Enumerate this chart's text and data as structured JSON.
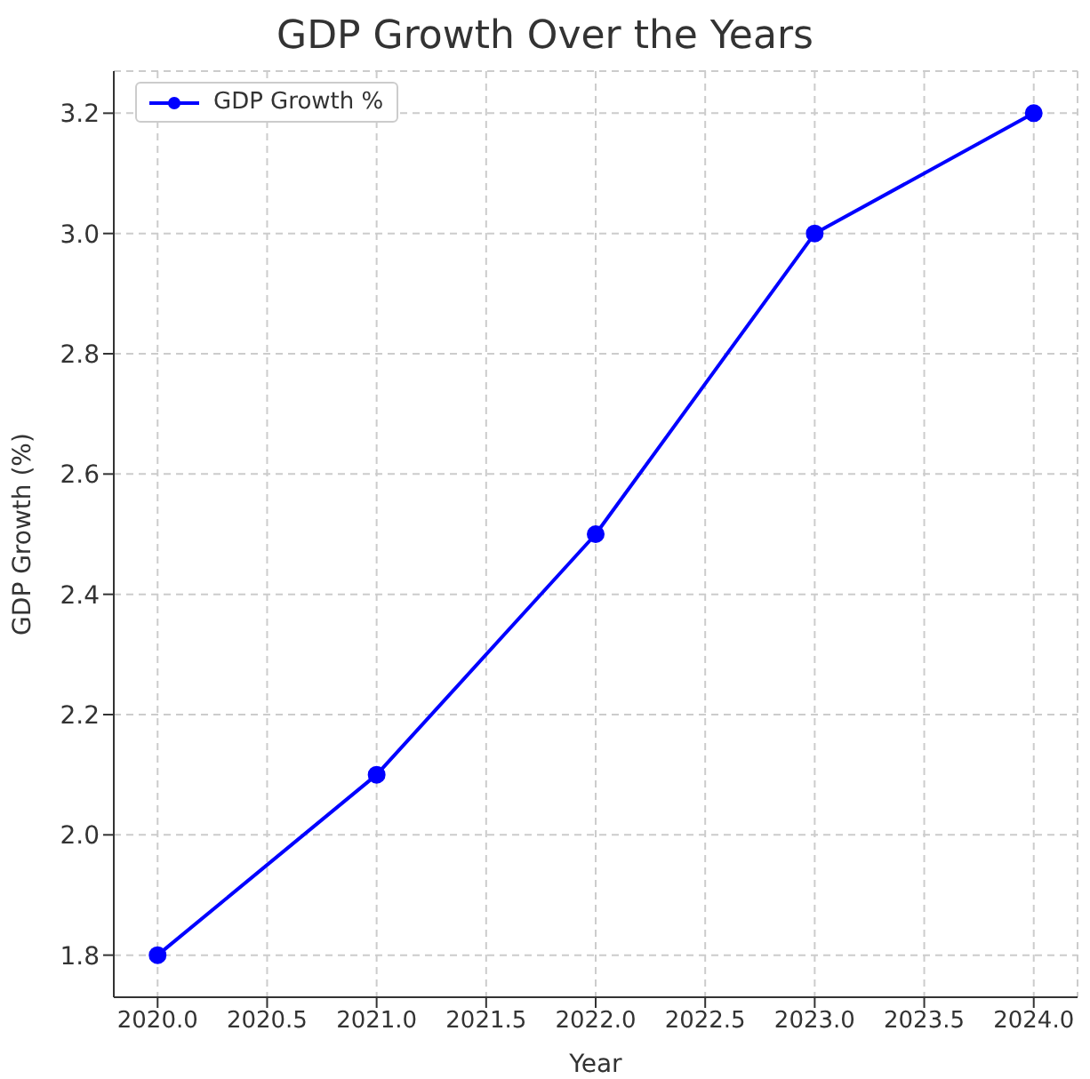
{
  "chart_data": {
    "type": "line",
    "title": "GDP Growth Over the Years",
    "xlabel": "Year",
    "ylabel": "GDP Growth (%)",
    "x": [
      2020,
      2021,
      2022,
      2023,
      2024
    ],
    "series": [
      {
        "name": "GDP Growth %",
        "color": "#0000ff",
        "values": [
          1.8,
          2.1,
          2.5,
          3.0,
          3.2
        ]
      }
    ],
    "xlim": [
      2019.8,
      2024.2
    ],
    "ylim": [
      1.73,
      3.27
    ],
    "xticks": [
      {
        "value": 2020,
        "label": "2020.0"
      },
      {
        "value": 2020.5,
        "label": "2020.5"
      },
      {
        "value": 2021,
        "label": "2021.0"
      },
      {
        "value": 2021.5,
        "label": "2021.5"
      },
      {
        "value": 2022,
        "label": "2022.0"
      },
      {
        "value": 2022.5,
        "label": "2022.5"
      },
      {
        "value": 2023,
        "label": "2023.0"
      },
      {
        "value": 2023.5,
        "label": "2023.5"
      },
      {
        "value": 2024,
        "label": "2024.0"
      }
    ],
    "yticks": [
      {
        "value": 1.8,
        "label": "1.8"
      },
      {
        "value": 2.0,
        "label": "2.0"
      },
      {
        "value": 2.2,
        "label": "2.2"
      },
      {
        "value": 2.4,
        "label": "2.4"
      },
      {
        "value": 2.6,
        "label": "2.6"
      },
      {
        "value": 2.8,
        "label": "2.8"
      },
      {
        "value": 3.0,
        "label": "3.0"
      },
      {
        "value": 3.2,
        "label": "3.2"
      }
    ],
    "grid": true,
    "legend": "top left",
    "marker": "circle",
    "line_style": "solid"
  }
}
